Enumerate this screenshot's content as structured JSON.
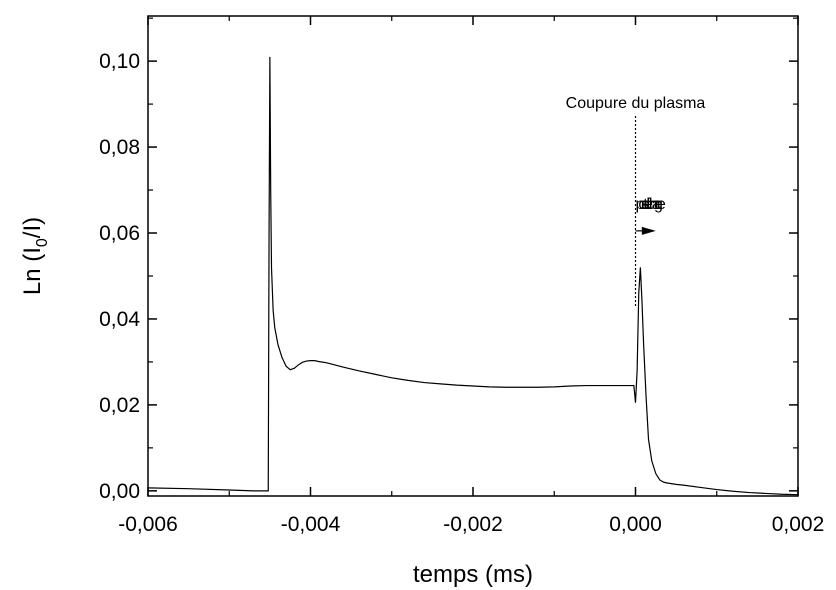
{
  "chart_data": {
    "type": "line",
    "title": "",
    "xlabel": "temps (ms)",
    "ylabel_parts": {
      "main": "Ln (I",
      "sub": "0",
      "tail": "/I)"
    },
    "xlim": [
      -0.006,
      0.002
    ],
    "ylim": [
      -0.0012,
      0.1105
    ],
    "x_ticks": [
      -0.006,
      -0.004,
      -0.002,
      0.0,
      0.002
    ],
    "x_tick_labels": [
      "-0,006",
      "-0,004",
      "-0,002",
      "0,000",
      "0,002"
    ],
    "y_ticks": [
      0.0,
      0.02,
      0.04,
      0.06,
      0.08,
      0.1
    ],
    "y_tick_labels": [
      "0,00",
      "0,02",
      "0,04",
      "0,06",
      "0,08",
      "0,10"
    ],
    "grid": false,
    "series": [
      {
        "x": [
          -0.006,
          -0.0055,
          -0.005,
          -0.0047,
          -0.00452,
          -0.00451,
          -0.0045,
          -0.00449,
          -0.00448,
          -0.00446,
          -0.00444,
          -0.0044,
          -0.00435,
          -0.0043,
          -0.00425,
          -0.0042,
          -0.00415,
          -0.0041,
          -0.00405,
          -0.004,
          -0.00395,
          -0.0039,
          -0.0038,
          -0.0037,
          -0.0036,
          -0.0034,
          -0.0032,
          -0.003,
          -0.0028,
          -0.0026,
          -0.0024,
          -0.0022,
          -0.002,
          -0.0018,
          -0.0016,
          -0.0014,
          -0.0012,
          -0.001,
          -0.0008,
          -0.0006,
          -0.0004,
          -0.0002,
          -5e-05,
          -2e-05,
          0.0,
          2e-05,
          4e-05,
          6e-05,
          8e-05,
          0.0001,
          0.00013,
          0.00016,
          0.0002,
          0.00025,
          0.0003,
          0.00035,
          0.0004,
          0.0005,
          0.0006,
          0.0008,
          0.001,
          0.0012,
          0.0014,
          0.0016,
          0.0018,
          0.002
        ],
        "y": [
          0.0007,
          0.0005,
          0.0002,
          0.0,
          0.0,
          0.06,
          0.101,
          0.07,
          0.052,
          0.042,
          0.038,
          0.034,
          0.031,
          0.029,
          0.0282,
          0.0285,
          0.0293,
          0.0299,
          0.0302,
          0.0303,
          0.0303,
          0.0301,
          0.0298,
          0.0293,
          0.0288,
          0.0279,
          0.0271,
          0.0263,
          0.0257,
          0.0252,
          0.0249,
          0.0246,
          0.0244,
          0.0242,
          0.0241,
          0.0241,
          0.0241,
          0.0242,
          0.0244,
          0.0245,
          0.0245,
          0.0245,
          0.0245,
          0.0245,
          0.0205,
          0.028,
          0.046,
          0.052,
          0.044,
          0.034,
          0.022,
          0.012,
          0.007,
          0.004,
          0.0025,
          0.002,
          0.0018,
          0.0015,
          0.0013,
          0.0008,
          0.0003,
          -0.0001,
          -0.0004,
          -0.0006,
          -0.0008,
          -0.0009
        ]
      }
    ],
    "annotations": {
      "cut_label": "Coupure du plasma",
      "cut_x": 0.0,
      "post_label": "post-décharge",
      "arrow_x_end": 0.00025
    }
  }
}
